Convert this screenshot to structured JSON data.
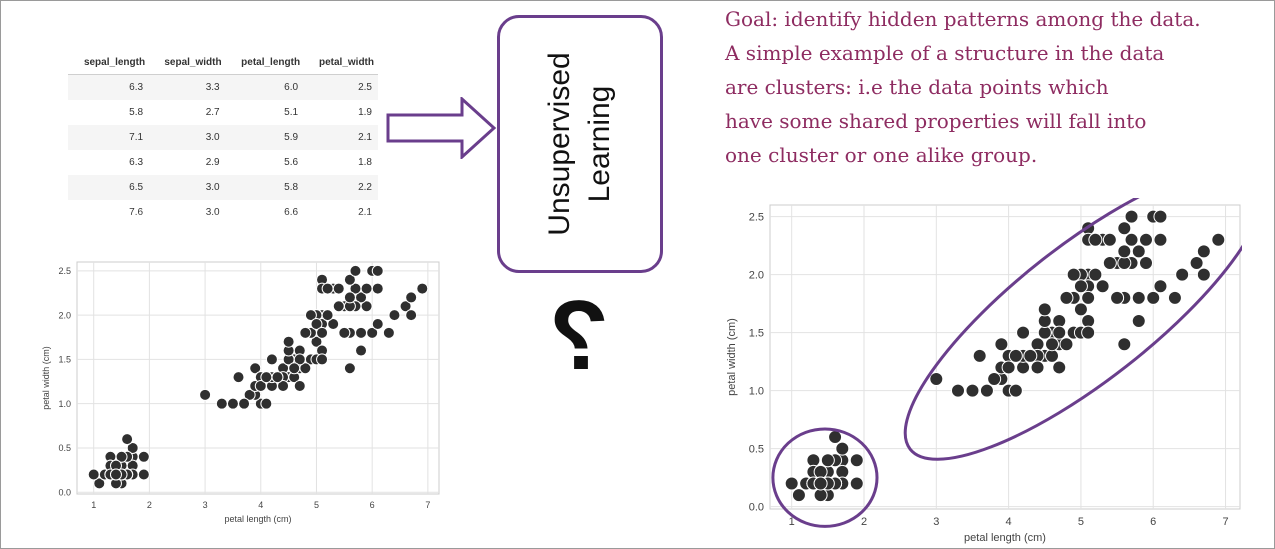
{
  "table": {
    "columns": [
      "sepal_length",
      "sepal_width",
      "petal_length",
      "petal_width"
    ],
    "rows": [
      [
        "6.3",
        "3.3",
        "6.0",
        "2.5"
      ],
      [
        "5.8",
        "2.7",
        "5.1",
        "1.9"
      ],
      [
        "7.1",
        "3.0",
        "5.9",
        "2.1"
      ],
      [
        "6.3",
        "2.9",
        "5.6",
        "1.8"
      ],
      [
        "6.5",
        "3.0",
        "5.8",
        "2.2"
      ],
      [
        "7.6",
        "3.0",
        "6.6",
        "2.1"
      ]
    ]
  },
  "box": {
    "line1": "Unsupervised",
    "line2": "Learning"
  },
  "question_mark": "?",
  "goal_lines": [
    "Goal: identify hidden patterns among the data.",
    "A simple example of a structure in the data",
    "are clusters: i.e the data points which",
    "have some shared properties will fall into",
    "one cluster or one alike group."
  ],
  "colors": {
    "accent": "#6a3e8c",
    "goal_text": "#8e2c61",
    "point": "#2f2f2f"
  },
  "chart_data": [
    {
      "type": "scatter",
      "title": "",
      "xlabel": "petal length (cm)",
      "ylabel": "petal width (cm)",
      "xlim": [
        0.7,
        7.2
      ],
      "ylim": [
        -0.02,
        2.6
      ],
      "xticks": [
        "1",
        "2",
        "3",
        "4",
        "5",
        "6",
        "7"
      ],
      "yticks": [
        "0.0",
        "0.5",
        "1.0",
        "1.5",
        "2.0",
        "2.5"
      ],
      "grid": true,
      "annotations": [],
      "x": [
        1.4,
        1.4,
        1.3,
        1.5,
        1.4,
        1.7,
        1.4,
        1.5,
        1.4,
        1.5,
        1.5,
        1.6,
        1.4,
        1.1,
        1.2,
        1.5,
        1.3,
        1.4,
        1.7,
        1.5,
        1.7,
        1.5,
        1.0,
        1.7,
        1.9,
        1.6,
        1.6,
        1.5,
        1.4,
        1.6,
        1.6,
        1.5,
        1.5,
        1.4,
        1.5,
        1.2,
        1.3,
        1.4,
        1.3,
        1.5,
        1.3,
        1.3,
        1.3,
        1.6,
        1.9,
        1.4,
        1.6,
        1.4,
        1.5,
        1.4,
        4.7,
        4.5,
        4.9,
        4.0,
        4.6,
        4.5,
        4.7,
        3.3,
        4.6,
        3.9,
        3.5,
        4.2,
        4.0,
        4.7,
        3.6,
        4.4,
        4.5,
        4.1,
        4.5,
        3.9,
        4.8,
        4.0,
        4.9,
        4.7,
        4.3,
        4.4,
        4.8,
        5.0,
        4.5,
        3.5,
        3.8,
        3.7,
        3.9,
        5.1,
        4.5,
        4.5,
        4.7,
        4.4,
        4.1,
        4.0,
        4.4,
        4.6,
        4.0,
        3.3,
        4.2,
        4.2,
        4.2,
        4.3,
        3.0,
        4.1,
        6.0,
        5.1,
        5.9,
        5.6,
        5.8,
        6.6,
        4.5,
        6.3,
        5.8,
        6.1,
        5.1,
        5.3,
        5.5,
        5.0,
        5.1,
        5.3,
        5.5,
        6.7,
        6.9,
        5.0,
        5.7,
        4.9,
        6.7,
        4.9,
        5.7,
        6.0,
        4.8,
        4.9,
        5.6,
        5.8,
        6.1,
        6.4,
        5.6,
        5.1,
        5.6,
        6.1,
        5.6,
        5.5,
        4.8,
        5.4,
        5.6,
        5.1,
        5.1,
        5.9,
        5.7,
        5.2,
        5.0,
        5.2,
        5.4,
        5.1
      ],
      "y": [
        0.2,
        0.2,
        0.2,
        0.2,
        0.2,
        0.4,
        0.3,
        0.2,
        0.2,
        0.1,
        0.2,
        0.2,
        0.1,
        0.1,
        0.2,
        0.4,
        0.4,
        0.3,
        0.3,
        0.3,
        0.2,
        0.4,
        0.2,
        0.5,
        0.2,
        0.2,
        0.4,
        0.2,
        0.2,
        0.2,
        0.2,
        0.4,
        0.1,
        0.2,
        0.2,
        0.2,
        0.2,
        0.1,
        0.2,
        0.2,
        0.3,
        0.3,
        0.2,
        0.6,
        0.4,
        0.3,
        0.2,
        0.2,
        0.2,
        0.2,
        1.4,
        1.5,
        1.5,
        1.3,
        1.5,
        1.3,
        1.6,
        1.0,
        1.3,
        1.4,
        1.0,
        1.5,
        1.0,
        1.4,
        1.3,
        1.4,
        1.5,
        1.0,
        1.5,
        1.1,
        1.8,
        1.3,
        1.5,
        1.2,
        1.3,
        1.4,
        1.4,
        1.7,
        1.5,
        1.0,
        1.1,
        1.0,
        1.2,
        1.6,
        1.5,
        1.6,
        1.5,
        1.3,
        1.3,
        1.3,
        1.2,
        1.4,
        1.2,
        1.0,
        1.3,
        1.2,
        1.3,
        1.3,
        1.1,
        1.3,
        2.5,
        1.9,
        2.1,
        1.8,
        2.2,
        2.1,
        1.7,
        1.8,
        1.8,
        2.5,
        2.0,
        1.9,
        2.1,
        2.0,
        2.4,
        2.3,
        1.8,
        2.2,
        2.3,
        1.5,
        2.3,
        2.0,
        2.0,
        1.8,
        2.1,
        1.8,
        1.8,
        1.8,
        2.1,
        1.6,
        1.9,
        2.0,
        2.2,
        1.5,
        1.4,
        2.3,
        2.4,
        1.8,
        1.8,
        2.1,
        2.4,
        2.3,
        1.9,
        2.3,
        2.5,
        2.3,
        1.9,
        2.0,
        2.3,
        1.8
      ]
    },
    {
      "type": "scatter",
      "title": "",
      "xlabel": "petal length (cm)",
      "ylabel": "petal width (cm)",
      "xlim": [
        0.7,
        7.2
      ],
      "ylim": [
        -0.02,
        2.6
      ],
      "xticks": [
        "1",
        "2",
        "3",
        "4",
        "5",
        "6",
        "7"
      ],
      "yticks": [
        "0.0",
        "0.5",
        "1.0",
        "1.5",
        "2.0",
        "2.5"
      ],
      "grid": true,
      "annotations": [],
      "clusters": [
        {
          "cx": 1.46,
          "cy": 0.25,
          "rx": 0.72,
          "ry": 0.42,
          "angle": 0
        },
        {
          "cx": 5.05,
          "cy": 1.67,
          "rx": 2.35,
          "ry": 0.72,
          "angle": 38
        }
      ],
      "x": [
        1.4,
        1.4,
        1.3,
        1.5,
        1.4,
        1.7,
        1.4,
        1.5,
        1.4,
        1.5,
        1.5,
        1.6,
        1.4,
        1.1,
        1.2,
        1.5,
        1.3,
        1.4,
        1.7,
        1.5,
        1.7,
        1.5,
        1.0,
        1.7,
        1.9,
        1.6,
        1.6,
        1.5,
        1.4,
        1.6,
        1.6,
        1.5,
        1.5,
        1.4,
        1.5,
        1.2,
        1.3,
        1.4,
        1.3,
        1.5,
        1.3,
        1.3,
        1.3,
        1.6,
        1.9,
        1.4,
        1.6,
        1.4,
        1.5,
        1.4,
        4.7,
        4.5,
        4.9,
        4.0,
        4.6,
        4.5,
        4.7,
        3.3,
        4.6,
        3.9,
        3.5,
        4.2,
        4.0,
        4.7,
        3.6,
        4.4,
        4.5,
        4.1,
        4.5,
        3.9,
        4.8,
        4.0,
        4.9,
        4.7,
        4.3,
        4.4,
        4.8,
        5.0,
        4.5,
        3.5,
        3.8,
        3.7,
        3.9,
        5.1,
        4.5,
        4.5,
        4.7,
        4.4,
        4.1,
        4.0,
        4.4,
        4.6,
        4.0,
        3.3,
        4.2,
        4.2,
        4.2,
        4.3,
        3.0,
        4.1,
        6.0,
        5.1,
        5.9,
        5.6,
        5.8,
        6.6,
        4.5,
        6.3,
        5.8,
        6.1,
        5.1,
        5.3,
        5.5,
        5.0,
        5.1,
        5.3,
        5.5,
        6.7,
        6.9,
        5.0,
        5.7,
        4.9,
        6.7,
        4.9,
        5.7,
        6.0,
        4.8,
        4.9,
        5.6,
        5.8,
        6.1,
        6.4,
        5.6,
        5.1,
        5.6,
        6.1,
        5.6,
        5.5,
        4.8,
        5.4,
        5.6,
        5.1,
        5.1,
        5.9,
        5.7,
        5.2,
        5.0,
        5.2,
        5.4,
        5.1
      ],
      "y": [
        0.2,
        0.2,
        0.2,
        0.2,
        0.2,
        0.4,
        0.3,
        0.2,
        0.2,
        0.1,
        0.2,
        0.2,
        0.1,
        0.1,
        0.2,
        0.4,
        0.4,
        0.3,
        0.3,
        0.3,
        0.2,
        0.4,
        0.2,
        0.5,
        0.2,
        0.2,
        0.4,
        0.2,
        0.2,
        0.2,
        0.2,
        0.4,
        0.1,
        0.2,
        0.2,
        0.2,
        0.2,
        0.1,
        0.2,
        0.2,
        0.3,
        0.3,
        0.2,
        0.6,
        0.4,
        0.3,
        0.2,
        0.2,
        0.2,
        0.2,
        1.4,
        1.5,
        1.5,
        1.3,
        1.5,
        1.3,
        1.6,
        1.0,
        1.3,
        1.4,
        1.0,
        1.5,
        1.0,
        1.4,
        1.3,
        1.4,
        1.5,
        1.0,
        1.5,
        1.1,
        1.8,
        1.3,
        1.5,
        1.2,
        1.3,
        1.4,
        1.4,
        1.7,
        1.5,
        1.0,
        1.1,
        1.0,
        1.2,
        1.6,
        1.5,
        1.6,
        1.5,
        1.3,
        1.3,
        1.3,
        1.2,
        1.4,
        1.2,
        1.0,
        1.3,
        1.2,
        1.3,
        1.3,
        1.1,
        1.3,
        2.5,
        1.9,
        2.1,
        1.8,
        2.2,
        2.1,
        1.7,
        1.8,
        1.8,
        2.5,
        2.0,
        1.9,
        2.1,
        2.0,
        2.4,
        2.3,
        1.8,
        2.2,
        2.3,
        1.5,
        2.3,
        2.0,
        2.0,
        1.8,
        2.1,
        1.8,
        1.8,
        1.8,
        2.1,
        1.6,
        1.9,
        2.0,
        2.2,
        1.5,
        1.4,
        2.3,
        2.4,
        1.8,
        1.8,
        2.1,
        2.4,
        2.3,
        1.9,
        2.3,
        2.5,
        2.3,
        1.9,
        2.0,
        2.3,
        1.8
      ]
    }
  ]
}
